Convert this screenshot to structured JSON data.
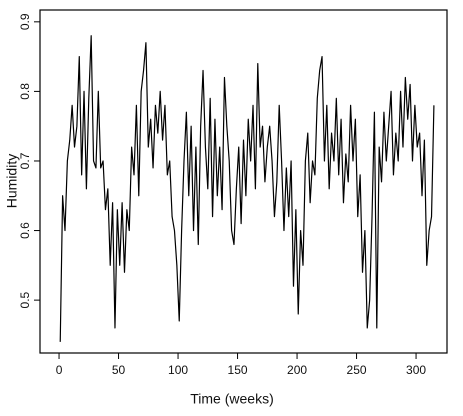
{
  "chart_data": {
    "type": "line",
    "x_label": "Time (weeks)",
    "y_label": "Humidity",
    "x": [
      1,
      3,
      5,
      7,
      9,
      11,
      13,
      15,
      17,
      19,
      21,
      23,
      25,
      27,
      29,
      31,
      33,
      35,
      37,
      39,
      41,
      43,
      45,
      47,
      49,
      51,
      53,
      55,
      57,
      59,
      61,
      63,
      65,
      67,
      69,
      71,
      73,
      75,
      77,
      79,
      81,
      83,
      85,
      87,
      89,
      91,
      93,
      95,
      97,
      99,
      101,
      103,
      105,
      107,
      109,
      111,
      113,
      115,
      117,
      119,
      121,
      123,
      125,
      127,
      129,
      131,
      133,
      135,
      137,
      139,
      141,
      143,
      145,
      147,
      149,
      151,
      153,
      155,
      157,
      159,
      161,
      163,
      165,
      167,
      169,
      171,
      173,
      175,
      177,
      179,
      181,
      183,
      185,
      187,
      189,
      191,
      193,
      195,
      197,
      199,
      201,
      203,
      205,
      207,
      209,
      211,
      213,
      215,
      217,
      219,
      221,
      223,
      225,
      227,
      229,
      231,
      233,
      235,
      237,
      239,
      241,
      243,
      245,
      247,
      249,
      251,
      253,
      255,
      257,
      259,
      261,
      263,
      265,
      267,
      269,
      271,
      273,
      275,
      277,
      279,
      281,
      283,
      285,
      287,
      289,
      291,
      293,
      295,
      297,
      299,
      301,
      303,
      305,
      307,
      309,
      311,
      313,
      315
    ],
    "series": [
      {
        "name": "Humidity",
        "color": "#000000",
        "values": [
          0.44,
          0.65,
          0.6,
          0.7,
          0.73,
          0.78,
          0.72,
          0.75,
          0.85,
          0.68,
          0.8,
          0.66,
          0.79,
          0.88,
          0.7,
          0.69,
          0.8,
          0.69,
          0.7,
          0.63,
          0.66,
          0.55,
          0.64,
          0.46,
          0.63,
          0.55,
          0.64,
          0.54,
          0.63,
          0.6,
          0.72,
          0.68,
          0.78,
          0.65,
          0.8,
          0.83,
          0.87,
          0.72,
          0.76,
          0.69,
          0.78,
          0.74,
          0.8,
          0.73,
          0.78,
          0.68,
          0.7,
          0.62,
          0.6,
          0.55,
          0.47,
          0.6,
          0.7,
          0.77,
          0.65,
          0.75,
          0.6,
          0.72,
          0.58,
          0.75,
          0.83,
          0.72,
          0.66,
          0.79,
          0.62,
          0.76,
          0.65,
          0.72,
          0.63,
          0.82,
          0.75,
          0.7,
          0.6,
          0.58,
          0.66,
          0.72,
          0.61,
          0.73,
          0.65,
          0.76,
          0.7,
          0.78,
          0.66,
          0.84,
          0.72,
          0.75,
          0.67,
          0.72,
          0.75,
          0.7,
          0.62,
          0.67,
          0.78,
          0.7,
          0.6,
          0.69,
          0.62,
          0.7,
          0.52,
          0.63,
          0.48,
          0.6,
          0.55,
          0.7,
          0.74,
          0.64,
          0.7,
          0.68,
          0.79,
          0.83,
          0.85,
          0.7,
          0.78,
          0.66,
          0.74,
          0.7,
          0.79,
          0.68,
          0.76,
          0.64,
          0.71,
          0.67,
          0.78,
          0.7,
          0.76,
          0.62,
          0.68,
          0.54,
          0.6,
          0.46,
          0.5,
          0.62,
          0.77,
          0.46,
          0.72,
          0.67,
          0.77,
          0.7,
          0.75,
          0.8,
          0.68,
          0.74,
          0.7,
          0.8,
          0.72,
          0.82,
          0.76,
          0.81,
          0.7,
          0.78,
          0.72,
          0.74,
          0.65,
          0.73,
          0.55,
          0.6,
          0.62,
          0.78
        ]
      }
    ],
    "xlim": [
      -16,
      326
    ],
    "xticks": [
      0,
      50,
      100,
      150,
      200,
      250,
      300
    ],
    "ylim": [
      0.424,
      0.917
    ],
    "yticks": [
      0.5,
      0.6,
      0.7,
      0.8,
      0.9
    ],
    "grid": false
  }
}
